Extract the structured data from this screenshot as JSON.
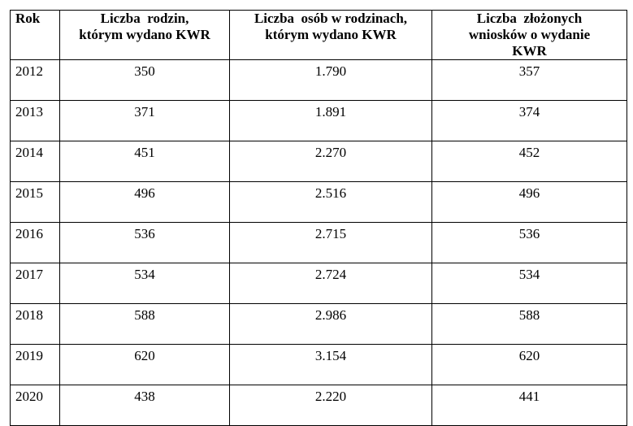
{
  "table": {
    "header": [
      [
        "Rok"
      ],
      [
        "Liczba  rodzin,",
        "którym wydano KWR"
      ],
      [
        "Liczba  osób w rodzinach,",
        "którym wydano KWR"
      ],
      [
        "Liczba  złożonych",
        "wniosków o wydanie",
        "KWR"
      ]
    ],
    "rows": [
      [
        "2012",
        "350",
        "1.790",
        "357"
      ],
      [
        "2013",
        "371",
        "1.891",
        "374"
      ],
      [
        "2014",
        "451",
        "2.270",
        "452"
      ],
      [
        "2015",
        "496",
        "2.516",
        "496"
      ],
      [
        "2016",
        "536",
        "2.715",
        "536"
      ],
      [
        "2017",
        "534",
        "2.724",
        "534"
      ],
      [
        "2018",
        "588",
        "2.986",
        "588"
      ],
      [
        "2019",
        "620",
        "3.154",
        "620"
      ],
      [
        "2020",
        "438",
        "2.220",
        "441"
      ]
    ]
  }
}
